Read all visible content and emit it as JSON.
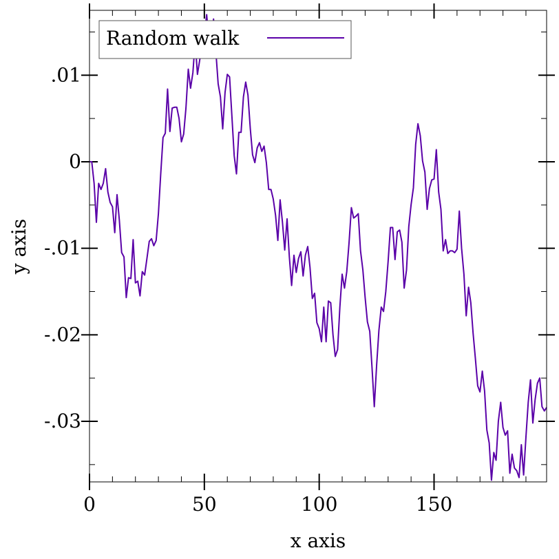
{
  "chart_data": {
    "type": "line",
    "title": "",
    "xlabel": "x axis",
    "ylabel": "y axis",
    "xlim": [
      0,
      199
    ],
    "ylim": [
      -0.037,
      0.0175
    ],
    "x_ticks": [
      {
        "value": 0,
        "label": "0"
      },
      {
        "value": 50,
        "label": "50"
      },
      {
        "value": 100,
        "label": "100"
      },
      {
        "value": 150,
        "label": "150"
      }
    ],
    "y_ticks": [
      {
        "value": 0.01,
        "label": ".01"
      },
      {
        "value": 0,
        "label": "0"
      },
      {
        "value": -0.01,
        "label": "-.01"
      },
      {
        "value": -0.02,
        "label": "-.02"
      },
      {
        "value": -0.03,
        "label": "-.03"
      }
    ],
    "x_minor_step": 10,
    "y_minor_step": 0.005,
    "grid": false,
    "legend_position": "top-left",
    "series": [
      {
        "name": "Random walk",
        "color": "#5a00a8",
        "x_start": 0,
        "x_step": 1,
        "values": [
          0,
          0,
          -0.0025,
          -0.007,
          -0.0025,
          -0.0032,
          -0.0025,
          -0.0008,
          -0.0035,
          -0.0047,
          -0.0052,
          -0.0082,
          -0.0038,
          -0.0068,
          -0.0105,
          -0.011,
          -0.0157,
          -0.0134,
          -0.0135,
          -0.009,
          -0.014,
          -0.0138,
          -0.0155,
          -0.0127,
          -0.0131,
          -0.0112,
          -0.0092,
          -0.0089,
          -0.0097,
          -0.0091,
          -0.006,
          -0.0015,
          0.0028,
          0.0033,
          0.0084,
          0.0035,
          0.0062,
          0.0063,
          0.0063,
          0.005,
          0.0023,
          0.0032,
          0.0062,
          0.0107,
          0.0085,
          0.0103,
          0.0139,
          0.0101,
          0.0118,
          0.0131,
          0.0145,
          0.017,
          0.014,
          0.0135,
          0.0165,
          0.0128,
          0.009,
          0.0075,
          0.0038,
          0.008,
          0.0101,
          0.0098,
          0.0052,
          0.0007,
          -0.0014,
          0.0034,
          0.0034,
          0.0075,
          0.0092,
          0.0077,
          0.0038,
          0.0008,
          -0.0001,
          0.0016,
          0.0022,
          0.0012,
          0.0018,
          -0.0001,
          -0.0032,
          -0.0032,
          -0.0043,
          -0.0062,
          -0.0091,
          -0.0044,
          -0.007,
          -0.0102,
          -0.0066,
          -0.011,
          -0.0143,
          -0.0108,
          -0.0128,
          -0.0112,
          -0.0104,
          -0.0132,
          -0.0108,
          -0.0098,
          -0.0122,
          -0.0158,
          -0.0152,
          -0.0186,
          -0.0193,
          -0.0208,
          -0.0168,
          -0.0208,
          -0.0161,
          -0.0163,
          -0.02,
          -0.0225,
          -0.0217,
          -0.0168,
          -0.013,
          -0.0146,
          -0.0127,
          -0.0094,
          -0.0053,
          -0.0065,
          -0.0063,
          -0.006,
          -0.0103,
          -0.0125,
          -0.0157,
          -0.0185,
          -0.0196,
          -0.0238,
          -0.0283,
          -0.0235,
          -0.0195,
          -0.0168,
          -0.0173,
          -0.015,
          -0.0115,
          -0.0076,
          -0.0076,
          -0.0113,
          -0.0081,
          -0.0079,
          -0.0093,
          -0.0146,
          -0.0125,
          -0.0075,
          -0.005,
          -0.003,
          0.002,
          0.0044,
          0.003,
          0.0001,
          -0.0012,
          -0.0055,
          -0.0031,
          -0.0021,
          -0.002,
          0.0014,
          -0.0035,
          -0.0055,
          -0.0103,
          -0.009,
          -0.0106,
          -0.0103,
          -0.0103,
          -0.0105,
          -0.0101,
          -0.0057,
          -0.01,
          -0.013,
          -0.0178,
          -0.0145,
          -0.0163,
          -0.0198,
          -0.0228,
          -0.0259,
          -0.0266,
          -0.0242,
          -0.0265,
          -0.031,
          -0.0325,
          -0.0368,
          -0.0336,
          -0.0345,
          -0.03,
          -0.0278,
          -0.0307,
          -0.0316,
          -0.0311,
          -0.036,
          -0.0338,
          -0.0354,
          -0.0357,
          -0.0365,
          -0.0327,
          -0.0362,
          -0.0318,
          -0.0278,
          -0.0252,
          -0.0302,
          -0.0275,
          -0.0256,
          -0.025,
          -0.0283,
          -0.0288,
          -0.0284
        ]
      }
    ]
  }
}
